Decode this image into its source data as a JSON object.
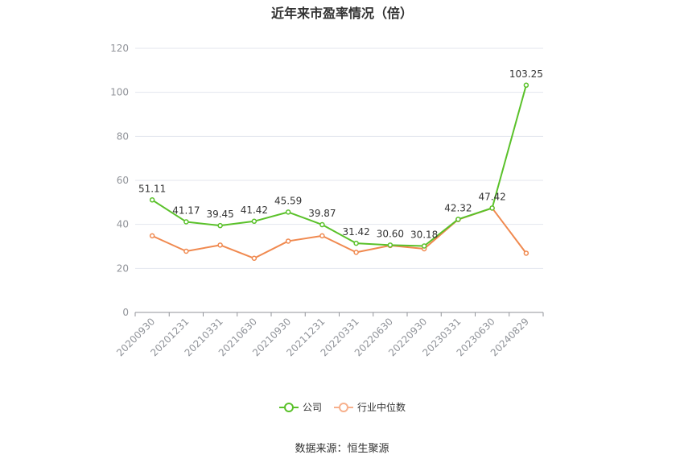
{
  "title": "近年来市盈率情况（倍）",
  "source": "数据来源：恒生聚源",
  "chart_data": {
    "type": "line",
    "title": "近年来市盈率情况（倍）",
    "categories": [
      "20200930",
      "20201231",
      "20210331",
      "20210630",
      "20210930",
      "20211231",
      "20220331",
      "20220630",
      "20220930",
      "20230331",
      "20230630",
      "20240829"
    ],
    "ylim": [
      0,
      120
    ],
    "yticks": [
      0,
      20,
      40,
      60,
      80,
      100,
      120
    ],
    "grid": true,
    "legend_position": "bottom",
    "series": [
      {
        "name": "公司",
        "color": "#5ac12a",
        "values": [
          51.11,
          41.17,
          39.45,
          41.42,
          45.59,
          39.87,
          31.42,
          30.6,
          30.18,
          42.32,
          47.42,
          103.25
        ],
        "labels": [
          "51.11",
          "41.17",
          "39.45",
          "41.42",
          "45.59",
          "39.87",
          "31.42",
          "30.60",
          "30.18",
          "42.32",
          "47.42",
          "103.25"
        ]
      },
      {
        "name": "行业中位数",
        "color": "#f0894f",
        "values": [
          34.8,
          27.8,
          30.6,
          24.6,
          32.4,
          34.8,
          27.3,
          30.4,
          28.9,
          42.2,
          47.4,
          26.9
        ]
      }
    ]
  }
}
